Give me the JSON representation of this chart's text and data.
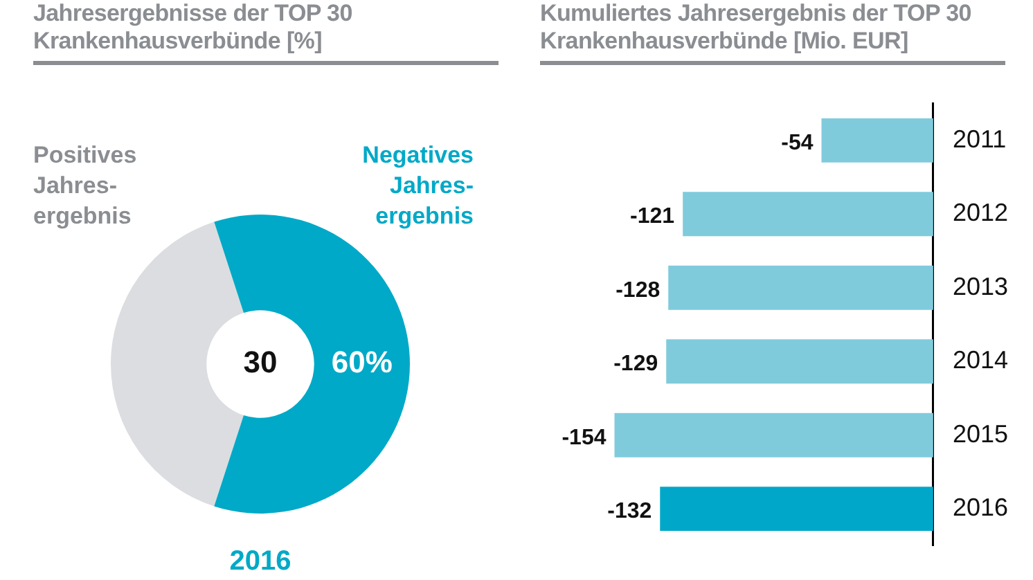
{
  "chart_data": [
    {
      "type": "donut",
      "title": "Jahresergebnisse der TOP 30\nKrankenhausverbünde [%]",
      "categories": [
        "Positives\nJahres-\nergebnis",
        "Negatives\nJahres-\nergebnis"
      ],
      "values": [
        40,
        60
      ],
      "colors": [
        "#dcdde0",
        "#00a9c7"
      ],
      "value_labels": [
        null,
        "60%"
      ],
      "annotations": [
        "30",
        "2016"
      ]
    },
    {
      "type": "bar",
      "orientation": "horizontal",
      "title": "Kumuliertes Jahresergebnis der TOP 30\nKrankenhausverbünde [Mio. EUR]",
      "categories": [
        "2011",
        "2012",
        "2013",
        "2014",
        "2015",
        "2016"
      ],
      "values": [
        -54,
        -121,
        -128,
        -129,
        -154,
        -132
      ],
      "colors": [
        "#7fcbdc",
        "#7fcbdc",
        "#7fcbdc",
        "#7fcbdc",
        "#7fcbdc",
        "#00a7c8"
      ],
      "data_labels": true,
      "tick_labels": "y"
    }
  ]
}
